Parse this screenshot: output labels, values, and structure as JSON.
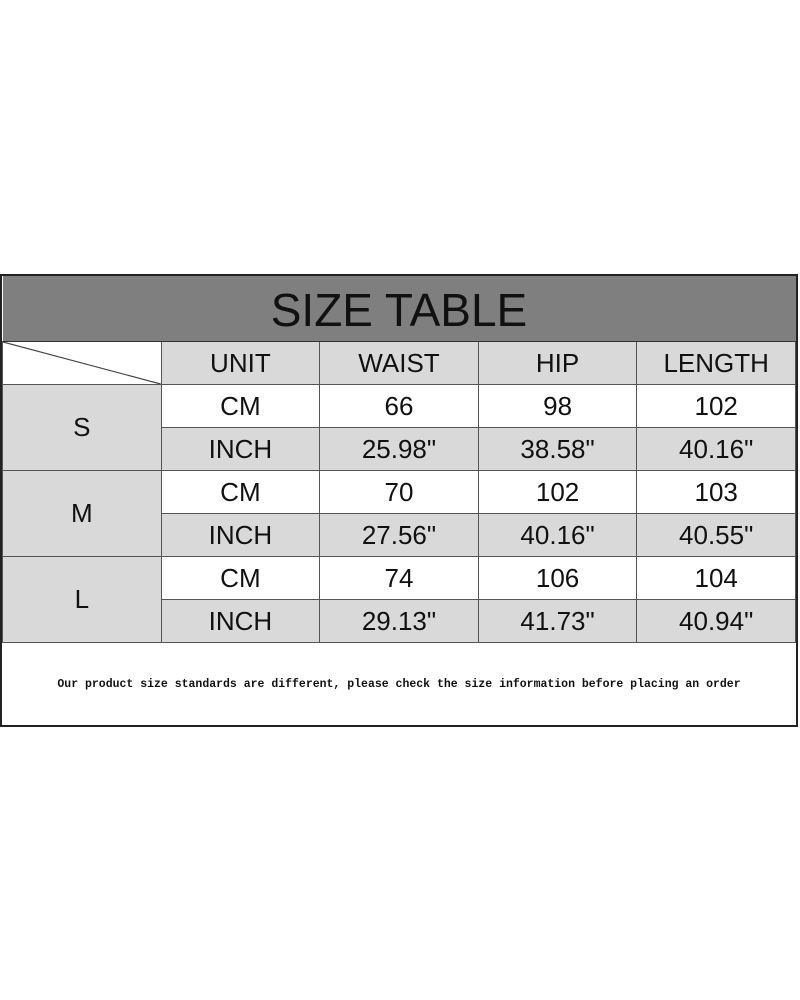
{
  "title": "SIZE TABLE",
  "headers": [
    "UNIT",
    "WAIST",
    "HIP",
    "LENGTH"
  ],
  "sizes": [
    {
      "size": "S",
      "rows": [
        [
          "CM",
          "66",
          "98",
          "102"
        ],
        [
          "INCH",
          "25.98\"",
          "38.58\"",
          "40.16\""
        ]
      ]
    },
    {
      "size": "M",
      "rows": [
        [
          "CM",
          "70",
          "102",
          "103"
        ],
        [
          "INCH",
          "27.56\"",
          "40.16\"",
          "40.55\""
        ]
      ]
    },
    {
      "size": "L",
      "rows": [
        [
          "CM",
          "74",
          "106",
          "104"
        ],
        [
          "INCH",
          "29.13\"",
          "41.73\"",
          "40.94\""
        ]
      ]
    }
  ],
  "note": "Our product size standards are different, please check the size information before placing an order",
  "colors": {
    "title_bg": "#7f7f7f",
    "cell_gray": "#d9d9d9"
  }
}
